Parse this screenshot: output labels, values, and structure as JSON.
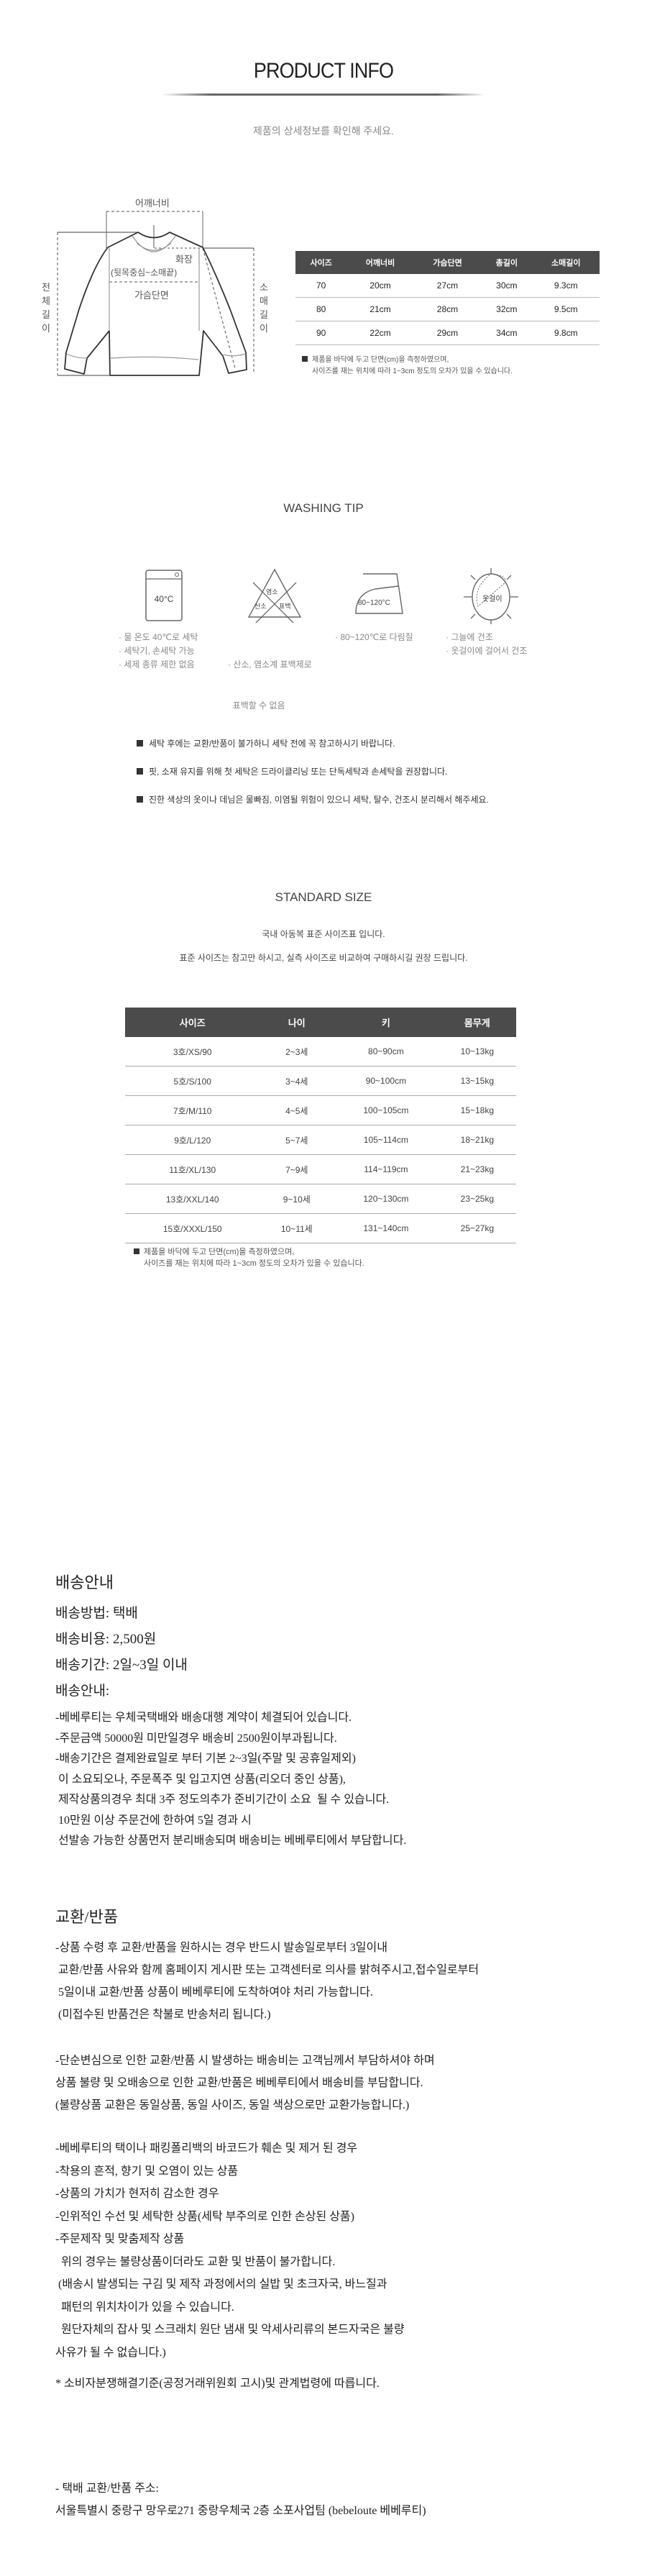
{
  "header": {
    "title": "PRODUCT INFO",
    "subtitle": "제품의 상세정보를 확인해 주세요."
  },
  "diagram": {
    "shoulder": "어깨너비",
    "sleeve_reach": "화장",
    "sleeve_reach_desc": "(뒷목중심~소매끝)",
    "chest": "가슴단면",
    "total_length": "전체길이",
    "sleeve_length": "소매길이"
  },
  "size_table": {
    "headers": [
      "사이즈",
      "어깨너비",
      "가슴단면",
      "총길이",
      "소매길이"
    ],
    "rows": [
      [
        "70",
        "20cm",
        "27cm",
        "30cm",
        "9.3cm"
      ],
      [
        "80",
        "21cm",
        "28cm",
        "32cm",
        "9.5cm"
      ],
      [
        "90",
        "22cm",
        "29cm",
        "34cm",
        "9.8cm"
      ]
    ],
    "note_line1": "제품을 바닥에 두고 단면(cm)을 측정하였으며,",
    "note_line2": "사이즈를 재는 위치에 따라 1~3cm 정도의 오차가 있을 수 있습니다."
  },
  "washing": {
    "title": "WASHING TIP",
    "icons": [
      {
        "name": "machine-wash-40-icon",
        "label": "40°C"
      },
      {
        "name": "no-bleach-icon",
        "label_top": "염소",
        "label_left": "산소",
        "label_right": "표백"
      },
      {
        "name": "iron-icon",
        "label": "80~120°C"
      },
      {
        "name": "hang-dry-shade-icon",
        "label": "옷걸이"
      }
    ],
    "texts": [
      [
        "· 물 온도 40℃로 세탁",
        "· 세탁기, 손세탁 가능",
        "· 세제 종류 제한 없음"
      ],
      [
        "· 산소, 염소계 표백제로",
        "  표백할 수 없음"
      ],
      [
        "· 80~120℃로 다림질"
      ],
      [
        "· 그늘에 건조",
        "· 옷걸이에 걸어서 건조"
      ]
    ],
    "notes": [
      "세탁 후에는 교환/반품이 불가하니 세탁 전에 꼭 참고하시기 바랍니다.",
      "핏, 소재 유지를 위해 첫 세탁은 드라이클리닝 또는 단독세탁과 손세탁을 권장합니다.",
      "진한 색상의 옷이나 데님은 물빠짐, 이염될 위험이 있으니 세탁, 탈수, 건조시 분리해서 해주세요."
    ]
  },
  "standard_size": {
    "title": "STANDARD SIZE",
    "desc1": "국내 아동복 표준 사이즈표 입니다.",
    "desc2": "표준 사이즈는 참고만 하시고, 실측 사이즈로 비교하여 구매하시길 권장 드립니다.",
    "headers": [
      "사이즈",
      "나이",
      "키",
      "몸무게"
    ],
    "rows": [
      [
        "3호/XS/90",
        "2~3세",
        "80~90cm",
        "10~13kg"
      ],
      [
        "5호/S/100",
        "3~4세",
        "90~100cm",
        "13~15kg"
      ],
      [
        "7호/M/110",
        "4~5세",
        "100~105cm",
        "15~18kg"
      ],
      [
        "9호/L/120",
        "5~7세",
        "105~114cm",
        "18~21kg"
      ],
      [
        "11호/XL/130",
        "7~9세",
        "114~119cm",
        "21~23kg"
      ],
      [
        "13호/XXL/140",
        "9~10세",
        "120~130cm",
        "23~25kg"
      ],
      [
        "15호/XXXL/150",
        "10~11세",
        "131~140cm",
        "25~27kg"
      ]
    ],
    "note_line1": "제품을 바닥에 두고 단면(cm)을 측정하였으며,",
    "note_line2": "사이즈를 재는 위치에 따라 1~3cm 정도의 오차가 있을 수 있습니다."
  },
  "shipping": {
    "title": "배송안내",
    "method": "배송방법: 택배",
    "cost": "배송비용: 2,500원",
    "period": "배송기간: 2일~3일 이내",
    "guide_title": "배송안내:",
    "lines": [
      "-베베루티는 우체국택배와 배송대행 계약이 체결되어 있습니다.",
      "-주문금액 50000원 미만일경우 배송비 2500원이부과됩니다.",
      "-배송기간은 결제완료일로 부터 기본 2~3일(주말 및 공휴일제외)",
      " 이 소요되오나, 주문폭주 및 입고지연 상품(리오더 중인 상품),",
      " 제작상품의경우 최대 3주 정도의추가 준비기간이 소요  될 수 있습니다.",
      " 10만원 이상 주문건에 한하여 5일 경과 시",
      " 선발송 가능한 상품먼저 분리배송되며 배송비는 베베루티에서 부담합니다."
    ]
  },
  "exchange": {
    "title": "교환/반품",
    "block1": [
      "-상품 수령 후 교환/반품을 원하시는 경우 반드시 발송일로부터 3일이내",
      " 교환/반품 사유와 함께 홈페이지 게시판 또는 고객센터로 의사를 밝혀주시고,접수일로부터",
      " 5일이내 교환/반품 상품이 베베루티에 도착하여야 처리 가능합니다.",
      " (미접수된 반품건은 착불로 반송처리 됩니다.)"
    ],
    "block2": [
      "-단순변심으로 인한 교환/반품 시 발생하는 배송비는 고객님께서 부담하셔야 하며",
      "상품 불량 및 오배송으로 인한 교환/반품은 베베루티에서 배송비를 부담합니다.",
      "(불량상품 교환은 동일상품, 동일 사이즈, 동일 색상으로만 교환가능합니다.)"
    ],
    "block3": [
      "-베베루티의 택이나 패킹폴리백의 바코드가 훼손 및 제거 된 경우",
      "-착용의 흔적, 향기 및 오염이 있는 상품",
      "-상품의 가치가 현저히 감소한 경우",
      "-인위적인 수선 및 세탁한 상품(세탁 부주의로 인한 손상된 상품)",
      "-주문제작 및 맞춤제작 상품",
      "  위의 경우는 불량상품이더라도 교환 및 반품이 불가합니다.",
      " (배송시 발생되는 구김 및 제작 과정에서의 실밥 및 초크자국, 바느질과",
      "  패턴의 위치차이가 있을 수 있습니다.",
      "  원단자체의 잡사 및 스크래치 원단 냄새 및 악세사리류의 본드자국은 불량",
      "사유가 될 수 없습니다.)"
    ],
    "consumer_note": "* 소비자분쟁해결기준(공정거래위원회 고시)및 관계법령에 따릅니다.",
    "address_label": "- 택배 교환/반품 주소:",
    "address": "서울특별시 중랑구 망우로271 중랑우체국 2층 소포사업팀 (bebeloute 베베루티)"
  },
  "colors": {
    "table_header": "#4b4b4b",
    "text": "#222222",
    "muted": "#888888"
  }
}
